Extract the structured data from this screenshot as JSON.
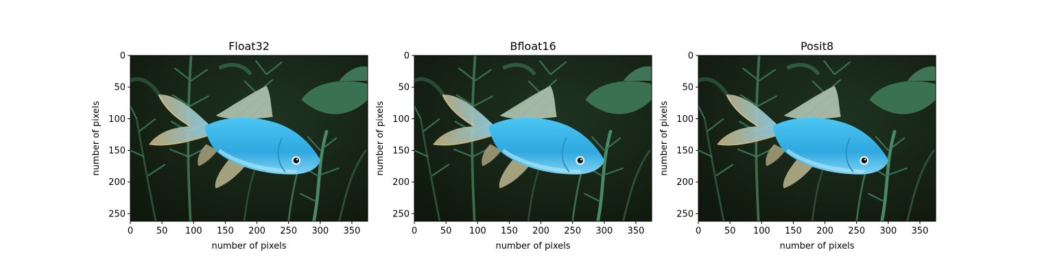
{
  "chart_data": [
    {
      "type": "image",
      "title": "Float32",
      "xlabel": "number of pixels",
      "ylabel": "number of pixels",
      "xlim": [
        0,
        375
      ],
      "ylim": [
        262,
        0
      ],
      "xticks": [
        0,
        50,
        100,
        150,
        200,
        250,
        300,
        350
      ],
      "yticks": [
        0,
        50,
        100,
        150,
        200,
        250
      ]
    },
    {
      "type": "image",
      "title": "Bfloat16",
      "xlabel": "number of pixels",
      "ylabel": "number of pixels",
      "xlim": [
        0,
        375
      ],
      "ylim": [
        262,
        0
      ],
      "xticks": [
        0,
        50,
        100,
        150,
        200,
        250,
        300,
        350
      ],
      "yticks": [
        0,
        50,
        100,
        150,
        200,
        250
      ]
    },
    {
      "type": "image",
      "title": "Posit8",
      "xlabel": "number of pixels",
      "ylabel": "number of pixels",
      "xlim": [
        0,
        375
      ],
      "ylim": [
        262,
        0
      ],
      "xticks": [
        0,
        50,
        100,
        150,
        200,
        250,
        300,
        350
      ],
      "yticks": [
        0,
        50,
        100,
        150,
        200,
        250
      ]
    }
  ],
  "image_content": {
    "subject": "blue-goldfish-icon",
    "colors": {
      "background": "#14200f",
      "plant_light": "#3f7a5a",
      "plant_dark": "#22402c",
      "fish_body": "#39b7ea",
      "fish_belly": "#9fe0f8",
      "fin_tint": "#b7b08a",
      "fin_edge": "#c9b47a",
      "eye": "#111111"
    }
  }
}
